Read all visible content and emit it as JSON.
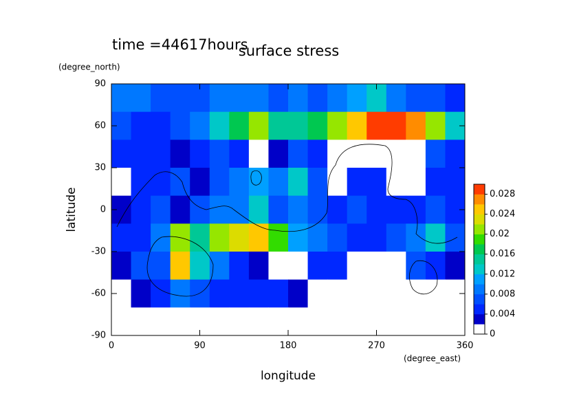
{
  "chart_data": {
    "type": "heatmap",
    "title": "surface stress",
    "subtitle": "time =44617hours",
    "x_label": "longitude",
    "y_label": "latitude",
    "x_unit": "(degree_east)",
    "y_unit": "(degree_north)",
    "x": [
      10,
      30,
      50,
      70,
      90,
      110,
      130,
      150,
      170,
      190,
      210,
      230,
      250,
      270,
      290,
      310,
      330,
      350
    ],
    "y": [
      80,
      60,
      40,
      20,
      0,
      -20,
      -40,
      -60,
      -80
    ],
    "values": [
      [
        0.008,
        0.008,
        0.006,
        0.006,
        0.006,
        0.008,
        0.008,
        0.008,
        0.006,
        0.008,
        0.006,
        0.008,
        0.01,
        0.012,
        0.008,
        0.006,
        0.006,
        0.004
      ],
      [
        0.006,
        0.004,
        0.004,
        0.006,
        0.008,
        0.012,
        0.016,
        0.02,
        0.014,
        0.014,
        0.016,
        0.02,
        0.024,
        0.028,
        0.03,
        0.026,
        0.02,
        0.012
      ],
      [
        0.004,
        0.004,
        0.004,
        0.002,
        0.004,
        0.006,
        0.004,
        0,
        0.002,
        0.006,
        0.004,
        0,
        0,
        0,
        0,
        0,
        0.006,
        0.004
      ],
      [
        0,
        0.004,
        0.004,
        0.006,
        0.002,
        0.006,
        0.008,
        0.01,
        0.008,
        0.012,
        0.006,
        0,
        0.004,
        0.004,
        0,
        0,
        0.004,
        0.004
      ],
      [
        0.002,
        0.004,
        0.006,
        0.002,
        0.006,
        0.008,
        0.008,
        0.012,
        0.006,
        0.008,
        0.006,
        0.004,
        0.006,
        0.004,
        0.004,
        0.004,
        0.006,
        0.004
      ],
      [
        0.004,
        0.004,
        0.008,
        0.02,
        0.014,
        0.02,
        0.022,
        0.024,
        0.018,
        0.01,
        0.008,
        0.006,
        0.004,
        0.004,
        0.006,
        0.008,
        0.012,
        0.006
      ],
      [
        0.002,
        0.006,
        0.006,
        0.024,
        0.012,
        0.008,
        0.004,
        0.002,
        0,
        0,
        0.004,
        0.004,
        0,
        0,
        0,
        0.006,
        0.004,
        0.002
      ],
      [
        0,
        0.002,
        0.004,
        0.008,
        0.006,
        0.004,
        0.004,
        0.004,
        0.004,
        0.002,
        0,
        0,
        0,
        0,
        0,
        0,
        0,
        0
      ],
      [
        0,
        0,
        0,
        0,
        0,
        0,
        0,
        0,
        0,
        0,
        0,
        0,
        0,
        0,
        0,
        0,
        0,
        0
      ]
    ],
    "cell_width": 20,
    "cell_height": 20,
    "xlim": [
      0,
      360
    ],
    "ylim": [
      -90,
      90
    ],
    "xticks": [
      0,
      90,
      180,
      270,
      360
    ],
    "yticks": [
      -90,
      -60,
      -30,
      0,
      30,
      60,
      90
    ],
    "levels": [
      0,
      0.002,
      0.004,
      0.006,
      0.008,
      0.01,
      0.012,
      0.014,
      0.016,
      0.018,
      0.02,
      0.022,
      0.024,
      0.026,
      0.028,
      0.03
    ],
    "colors": [
      "#ffffff",
      "#0000c8",
      "#0028ff",
      "#0050ff",
      "#0078ff",
      "#00a0ff",
      "#00c8c8",
      "#00c896",
      "#00c850",
      "#32dc00",
      "#96e600",
      "#dcdc00",
      "#ffc800",
      "#ff8c00",
      "#ff3c00"
    ],
    "colorbar_lim": [
      0,
      0.03
    ],
    "colorbar_ticks": [
      0,
      0.004,
      0.008,
      0.012,
      0.016,
      0.02,
      0.024,
      0.028
    ]
  }
}
